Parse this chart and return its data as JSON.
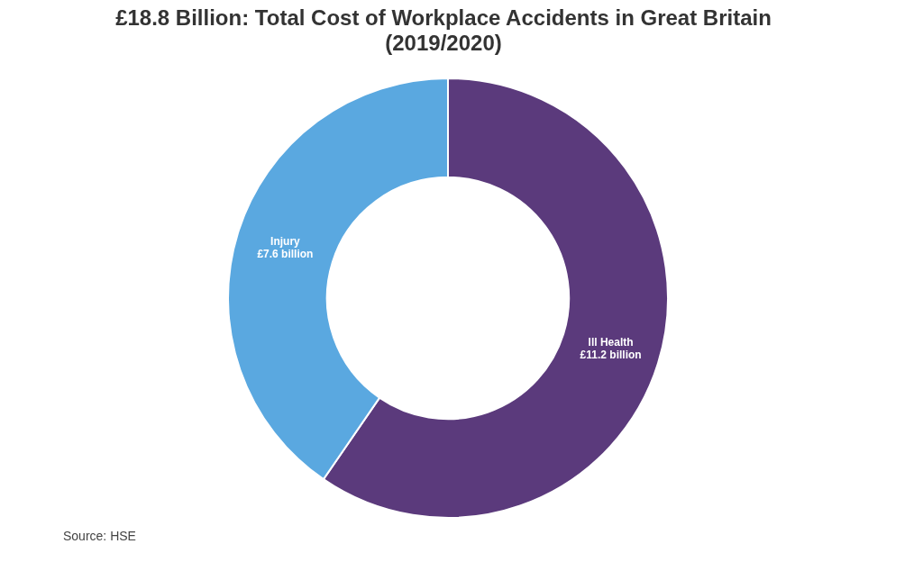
{
  "chart_data": {
    "type": "donut",
    "title": "£18.8 Billion: Total Cost of Workplace Accidents in Great Britain (2019/2020)",
    "categories": [
      "Ill Health",
      "Injury"
    ],
    "values": [
      11.2,
      7.6
    ],
    "colors": [
      "#5b3a7c",
      "#5aa8e0"
    ],
    "value_labels": [
      "£11.2 billion",
      "£7.6 billion"
    ],
    "annotations": [
      "Source: HSE"
    ]
  }
}
